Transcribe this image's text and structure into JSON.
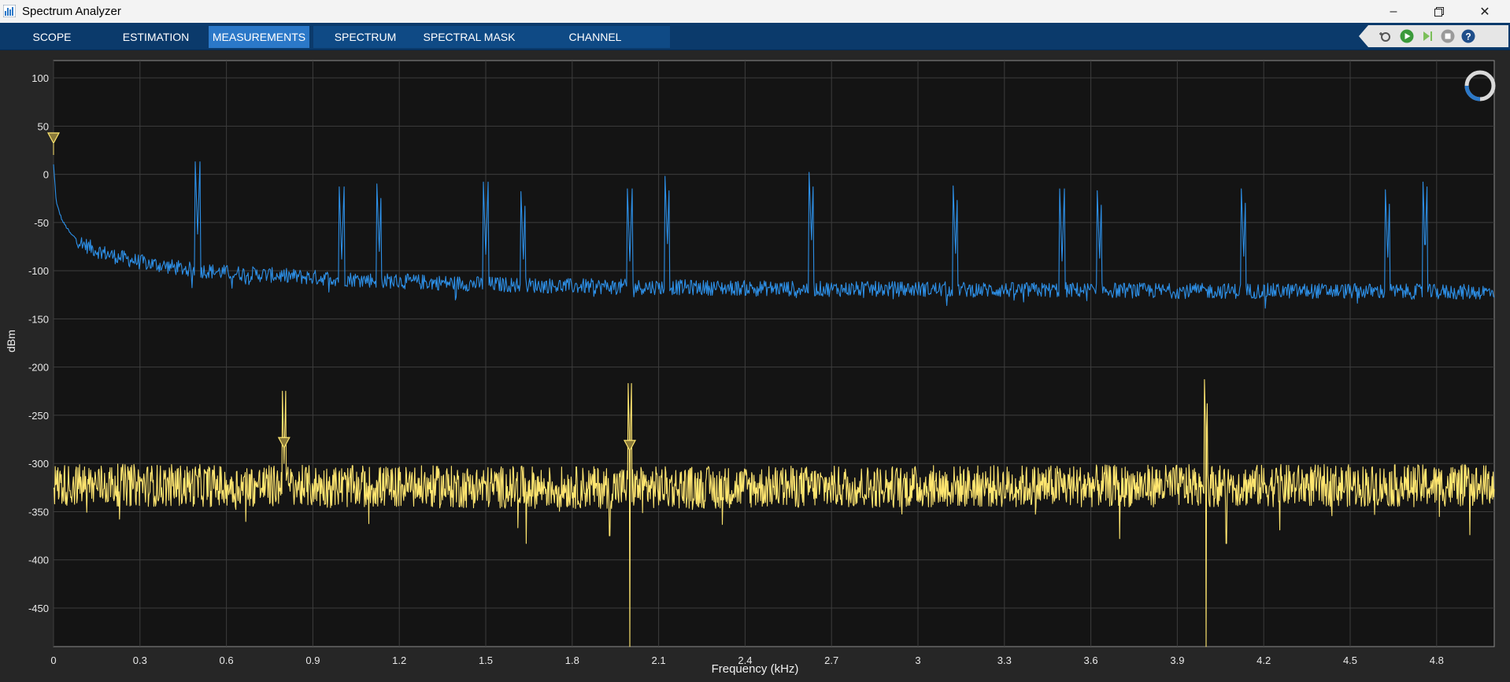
{
  "window": {
    "title": "Spectrum Analyzer",
    "icon": "spectrum-app-icon",
    "controls": [
      "minimize-icon",
      "restore-icon",
      "close-icon"
    ]
  },
  "toolstrip": {
    "tabs": [
      {
        "label": "SCOPE",
        "active": false
      },
      {
        "label": "ESTIMATION",
        "active": false
      },
      {
        "label": "MEASUREMENTS",
        "active": true
      },
      {
        "label": "SPECTRUM",
        "active": false
      },
      {
        "label": "SPECTRAL MASK",
        "active": false
      },
      {
        "label": "CHANNEL MEASUREMENTS",
        "active": false
      }
    ],
    "sim_controls": [
      "snapshot-icon",
      "run-icon",
      "step-forward-icon",
      "stop-icon",
      "help-icon"
    ]
  },
  "colors": {
    "accent": "#2b78c8",
    "series1": "#2d8fe6",
    "series2": "#ffe670",
    "plot_bg": "#141414",
    "grid": "#3d3d3d"
  },
  "chart_data": {
    "type": "line",
    "xlabel": "Frequency (kHz)",
    "ylabel": "dBm",
    "xlim": [
      0,
      5.0
    ],
    "ylim": [
      -490,
      118
    ],
    "xticks": [
      0,
      0.3,
      0.6,
      0.9,
      1.2,
      1.5,
      1.8,
      2.1,
      2.4,
      2.7,
      3,
      3.3,
      3.6,
      3.9,
      4.2,
      4.5,
      4.8
    ],
    "xtick_labels": [
      "0",
      "0.3",
      "0.6",
      "0.9",
      "1.2",
      "1.5",
      "1.8",
      "2.1",
      "2.4",
      "2.7",
      "3",
      "3.3",
      "3.6",
      "3.9",
      "4.2",
      "4.5",
      "4.8"
    ],
    "yticks": [
      100,
      50,
      0,
      -50,
      -100,
      -150,
      -200,
      -250,
      -300,
      -350,
      -400,
      -450
    ],
    "ytick_labels": [
      "100",
      "50",
      "0",
      "-50",
      "-100",
      "-150",
      "-200",
      "-250",
      "-300",
      "-350",
      "-400",
      "-450"
    ],
    "grid": true,
    "series": [
      {
        "color": "#2d8fe6",
        "envelope": {
          "x": [
            0,
            0.01,
            0.03,
            0.06,
            0.1,
            0.15,
            0.2,
            0.3,
            0.45,
            0.6,
            0.9,
            1.2,
            1.5,
            1.8,
            2.1,
            2.4,
            2.7,
            3.0,
            3.3,
            3.6,
            3.9,
            4.2,
            4.5,
            4.8,
            5.0
          ],
          "y": [
            10,
            -30,
            -48,
            -62,
            -72,
            -79,
            -84,
            -91,
            -98,
            -102,
            -107,
            -111,
            -114,
            -116,
            -117,
            -118,
            -119,
            -119,
            -120,
            -120,
            -121,
            -121,
            -121,
            -122,
            -122
          ]
        },
        "noise_amplitude_db": 8,
        "peaks": [
          {
            "x": 0.5,
            "y": -62
          },
          {
            "x": 1.0,
            "y": -88
          },
          {
            "x": 1.13,
            "y": -80
          },
          {
            "x": 1.5,
            "y": -83
          },
          {
            "x": 1.63,
            "y": -88
          },
          {
            "x": 2.0,
            "y": -90
          },
          {
            "x": 2.13,
            "y": -72
          },
          {
            "x": 2.63,
            "y": -68
          },
          {
            "x": 3.13,
            "y": -82
          },
          {
            "x": 3.5,
            "y": -90
          },
          {
            "x": 3.63,
            "y": -87
          },
          {
            "x": 4.13,
            "y": -85
          },
          {
            "x": 4.63,
            "y": -86
          },
          {
            "x": 4.76,
            "y": -73
          }
        ]
      },
      {
        "color": "#ffe670",
        "envelope": {
          "x": [
            0,
            1.0,
            2.0,
            3.0,
            4.0,
            5.0
          ],
          "y": [
            -322,
            -324,
            -325,
            -324,
            -323,
            -323
          ]
        },
        "noise_amplitude_db": 22,
        "dips": [
          {
            "x": 2.0,
            "y": -490
          },
          {
            "x": 4.0,
            "y": -490
          },
          {
            "x": 1.64,
            "y": -383
          },
          {
            "x": 1.93,
            "y": -375
          },
          {
            "x": 3.7,
            "y": -378
          },
          {
            "x": 4.07,
            "y": -383
          }
        ],
        "peaks": [
          {
            "x": 4.0,
            "y": -288
          },
          {
            "x": 2.0,
            "y": -292
          },
          {
            "x": 0.8,
            "y": -300
          }
        ]
      }
    ],
    "markers": [
      {
        "x": 0,
        "y": 38,
        "color": "#ffe670"
      },
      {
        "x": 0.8,
        "y": -278,
        "color": "#ffe670"
      },
      {
        "x": 2.0,
        "y": -281,
        "color": "#ffe670"
      }
    ]
  }
}
